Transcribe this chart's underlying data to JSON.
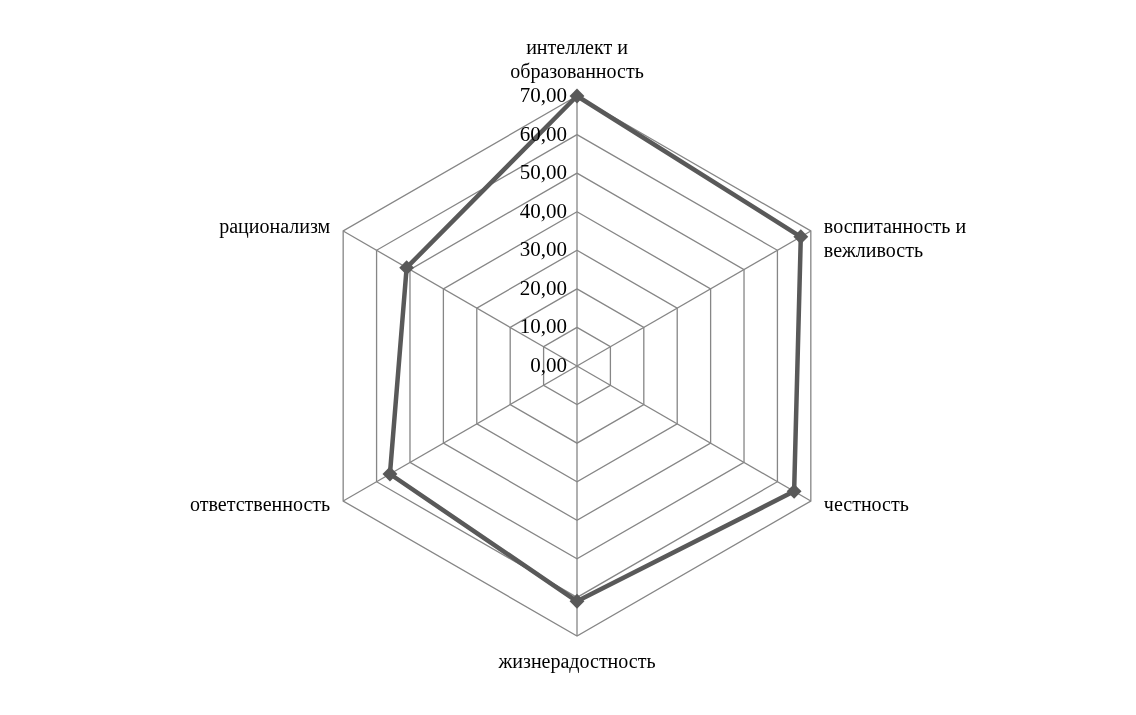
{
  "chart_data": {
    "type": "radar",
    "categories": [
      "интеллект и образованность",
      "воспитанность и вежливость",
      "честность",
      "жизнерадостность",
      "ответственность",
      "рационализм"
    ],
    "series": [
      {
        "color": "#595959",
        "values": [
          70,
          67,
          65,
          61,
          56,
          51
        ]
      }
    ],
    "ylim": [
      0,
      70
    ],
    "yticks": [
      {
        "value": 0,
        "label": "0,00"
      },
      {
        "value": 10,
        "label": "10,00"
      },
      {
        "value": 20,
        "label": "20,00"
      },
      {
        "value": 30,
        "label": "30,00"
      },
      {
        "value": 40,
        "label": "40,00"
      },
      {
        "value": 50,
        "label": "50,00"
      },
      {
        "value": 60,
        "label": "60,00"
      },
      {
        "value": 70,
        "label": "70,00"
      }
    ],
    "grid": true,
    "marker": "diamond",
    "line_style": "solid"
  }
}
